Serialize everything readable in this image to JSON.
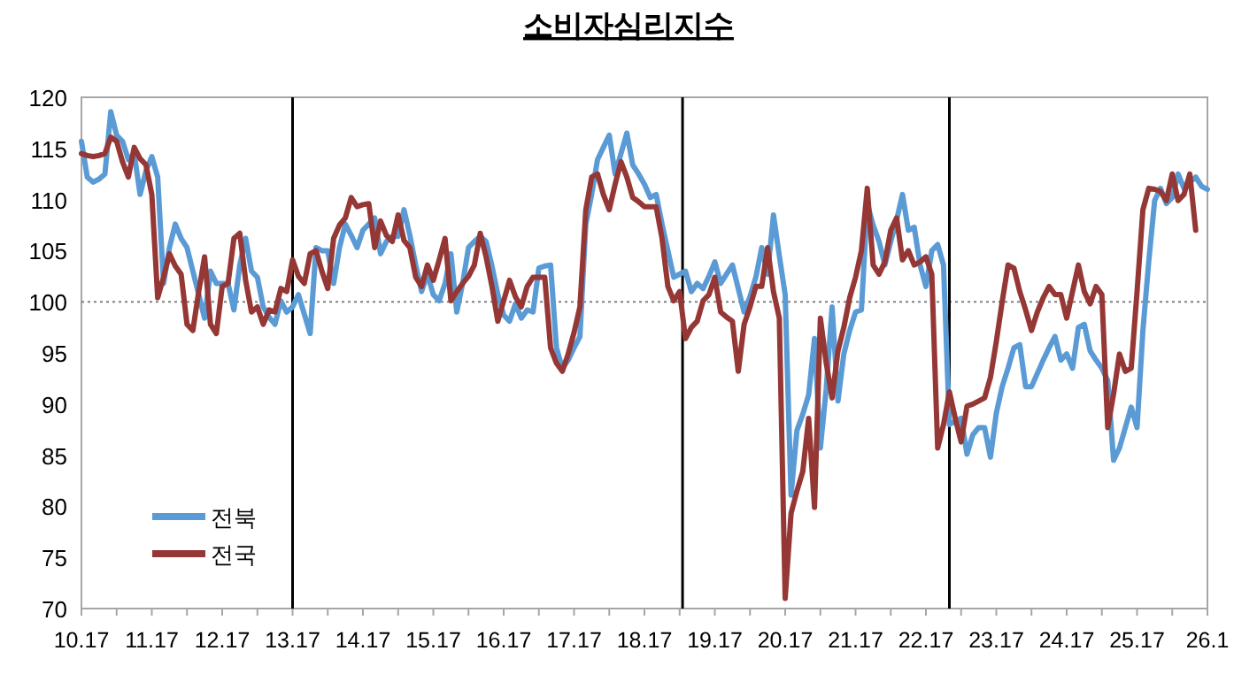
{
  "chart_data": {
    "type": "line",
    "title": "소비자심리지수",
    "ylim": [
      70,
      120
    ],
    "yticks": [
      70,
      75,
      80,
      85,
      90,
      95,
      100,
      105,
      110,
      115,
      120
    ],
    "categories": [
      "10.17",
      null,
      null,
      null,
      null,
      null,
      null,
      null,
      null,
      null,
      null,
      null,
      "11.17",
      null,
      null,
      null,
      null,
      null,
      null,
      null,
      null,
      null,
      null,
      null,
      "12.17",
      null,
      null,
      null,
      null,
      null,
      null,
      null,
      null,
      null,
      null,
      null,
      "13.17",
      null,
      null,
      null,
      null,
      null,
      null,
      null,
      null,
      null,
      null,
      null,
      "14.17",
      null,
      null,
      null,
      null,
      null,
      null,
      null,
      null,
      null,
      null,
      null,
      "15.17",
      null,
      null,
      null,
      null,
      null,
      null,
      null,
      null,
      null,
      null,
      null,
      "16.17",
      null,
      null,
      null,
      null,
      null,
      null,
      null,
      null,
      null,
      null,
      null,
      "17.17",
      null,
      null,
      null,
      null,
      null,
      null,
      null,
      null,
      null,
      null,
      null,
      "18.17",
      null,
      null,
      null,
      null,
      null,
      null,
      null,
      null,
      null,
      null,
      null,
      "19.17",
      null,
      null,
      null,
      null,
      null,
      null,
      null,
      null,
      null,
      null,
      null,
      "20.17",
      null,
      null,
      null,
      null,
      null,
      null,
      null,
      null,
      null,
      null,
      null,
      "21.17",
      null,
      null,
      null,
      null,
      null,
      null,
      null,
      null,
      null,
      null,
      null,
      "22.17",
      null,
      null,
      null,
      null,
      null,
      null,
      null,
      null,
      null,
      null,
      null,
      "23.17",
      null,
      null,
      null,
      null,
      null,
      null,
      null,
      null,
      null,
      null,
      null,
      "24.17",
      null,
      null,
      null,
      null,
      null,
      null,
      null,
      null,
      null,
      null,
      null,
      "25.17",
      null,
      null,
      null,
      null,
      null,
      null,
      null,
      null,
      null,
      null,
      null,
      "26.1"
    ],
    "grid": false,
    "legend": "bottom left",
    "marker": "none",
    "line_style": "solid",
    "ref_lines": [
      {
        "axis": "y",
        "value": 100,
        "color": "#808080",
        "line_style": "dotted"
      }
    ],
    "series": [
      {
        "name": "전북",
        "color": "#5b9bd5",
        "values": [
          115.7,
          112.2,
          111.7,
          112.0,
          112.5,
          118.6,
          116.3,
          115.7,
          113.9,
          114.5,
          110.5,
          112.8,
          114.2,
          112.2,
          101.8,
          105.3,
          107.6,
          106.2,
          105.3,
          103.0,
          100.7,
          98.4,
          103.0,
          101.8,
          101.8,
          101.8,
          99.2,
          103.6,
          106.2,
          103.0,
          102.4,
          99.5,
          98.5,
          97.8,
          100.1,
          99.0,
          99.5,
          100.7,
          98.8,
          96.9,
          105.3,
          105.0,
          105.0,
          101.8,
          105.3,
          107.6,
          106.5,
          105.3,
          107.0,
          107.6,
          108.2,
          104.7,
          105.9,
          106.4,
          106.4,
          109.0,
          106.5,
          103.6,
          101.0,
          102.7,
          100.7,
          100.1,
          101.8,
          104.7,
          99.0,
          101.8,
          105.3,
          105.9,
          106.4,
          105.9,
          103.5,
          100.7,
          98.7,
          98.1,
          99.8,
          98.4,
          99.2,
          99.0,
          103.3,
          103.5,
          103.6,
          95.5,
          93.5,
          94.3,
          95.5,
          96.6,
          107.6,
          110.5,
          113.9,
          115.1,
          116.3,
          112.5,
          114.5,
          116.5,
          113.4,
          112.5,
          111.5,
          110.2,
          110.5,
          107.6,
          105.0,
          102.4,
          102.7,
          103.0,
          101.0,
          101.8,
          101.3,
          102.5,
          103.9,
          101.8,
          102.7,
          103.6,
          101.3,
          99.0,
          100.5,
          102.4,
          105.3,
          102.7,
          108.5,
          104.5,
          100.7,
          81.1,
          87.4,
          89.0,
          90.9,
          96.4,
          85.7,
          91.5,
          99.5,
          90.3,
          94.9,
          97.2,
          99.0,
          99.2,
          109.6,
          107.5,
          105.9,
          103.6,
          105.9,
          108.0,
          110.5,
          107.0,
          107.3,
          103.6,
          101.5,
          105.0,
          105.6,
          103.6,
          88.0,
          88.3,
          88.6,
          85.1,
          87.0,
          87.7,
          87.7,
          84.8,
          89.1,
          91.7,
          93.5,
          95.5,
          95.8,
          91.7,
          91.7,
          93.0,
          94.3,
          95.5,
          96.6,
          94.3,
          94.9,
          93.5,
          97.5,
          97.8,
          95.2,
          94.3,
          93.5,
          92.3,
          84.5,
          85.7,
          87.7,
          89.7,
          87.7,
          97.2,
          104.0,
          109.9,
          111.1,
          109.6,
          110.2,
          112.5,
          111.1,
          111.7,
          112.2,
          111.3,
          111.0
        ]
      },
      {
        "name": "전국",
        "color": "#953735",
        "values": [
          114.5,
          114.3,
          114.2,
          114.3,
          114.5,
          116.1,
          115.7,
          113.7,
          112.2,
          115.1,
          114.0,
          113.4,
          110.5,
          100.4,
          102.4,
          104.7,
          103.5,
          102.7,
          97.8,
          97.2,
          101.0,
          104.4,
          97.8,
          96.9,
          101.5,
          101.8,
          106.2,
          106.7,
          102.1,
          99.0,
          99.5,
          97.8,
          99.2,
          99.0,
          101.3,
          101.0,
          104.1,
          102.5,
          101.8,
          104.7,
          105.0,
          103.0,
          101.3,
          106.2,
          107.5,
          108.2,
          110.2,
          109.3,
          109.5,
          109.6,
          105.3,
          107.9,
          106.5,
          105.9,
          108.5,
          106.0,
          105.3,
          102.4,
          101.5,
          103.6,
          102.1,
          104.1,
          106.2,
          100.1,
          101.0,
          101.8,
          102.5,
          103.6,
          106.7,
          104.4,
          101.5,
          98.1,
          100.1,
          102.1,
          100.5,
          99.5,
          101.5,
          102.4,
          102.4,
          102.4,
          95.5,
          94.0,
          93.2,
          94.9,
          97.0,
          99.5,
          109.0,
          112.2,
          112.5,
          110.5,
          109.0,
          111.5,
          113.7,
          112.2,
          110.2,
          109.8,
          109.3,
          109.3,
          109.3,
          106.2,
          101.5,
          100.1,
          101.0,
          96.4,
          97.5,
          98.1,
          100.1,
          100.7,
          102.4,
          99.0,
          98.5,
          98.1,
          93.2,
          97.8,
          99.5,
          101.5,
          101.5,
          105.3,
          101.0,
          98.4,
          71.0,
          79.3,
          81.5,
          83.4,
          88.6,
          79.9,
          98.4,
          94.0,
          90.6,
          95.2,
          97.5,
          100.4,
          102.4,
          105.0,
          111.1,
          103.6,
          102.7,
          103.9,
          107.0,
          108.2,
          104.1,
          105.0,
          103.6,
          103.9,
          104.4,
          102.7,
          85.7,
          88.0,
          91.2,
          88.6,
          86.3,
          89.8,
          90.0,
          90.3,
          90.6,
          92.6,
          96.1,
          100.0,
          103.6,
          103.3,
          101.0,
          99.2,
          97.2,
          99.0,
          100.4,
          101.5,
          100.7,
          100.7,
          98.4,
          101.0,
          103.6,
          101.0,
          99.8,
          101.5,
          100.7,
          87.7,
          91.0,
          94.9,
          93.2,
          93.5,
          101.0,
          109.0,
          111.1,
          111.0,
          110.8,
          109.9,
          112.5,
          109.9,
          110.5,
          112.5,
          107.0,
          null,
          null
        ]
      }
    ]
  }
}
